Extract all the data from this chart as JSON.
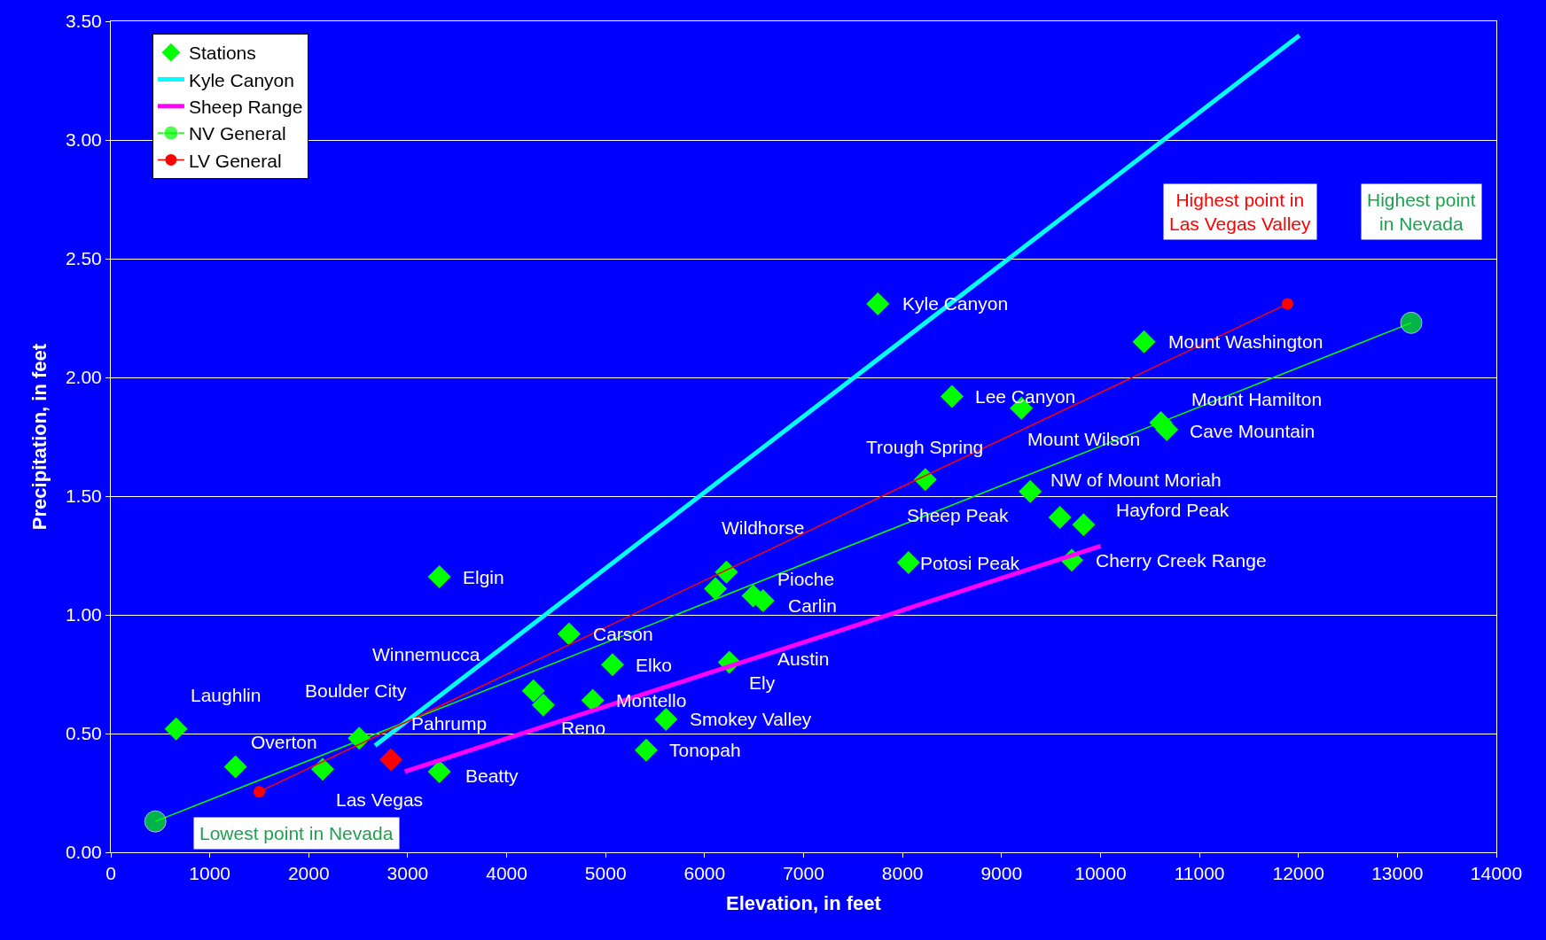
{
  "chart_data": {
    "type": "scatter",
    "xlabel": "Elevation, in feet",
    "ylabel": "Precipitation, in feet",
    "xlim": [
      0,
      14000
    ],
    "xticks": [
      0,
      1000,
      2000,
      3000,
      4000,
      5000,
      6000,
      7000,
      8000,
      9000,
      10000,
      11000,
      12000,
      13000,
      14000
    ],
    "ylim": [
      0,
      3.5
    ],
    "yticks": [
      {
        "value": 0,
        "label": "0.00"
      },
      {
        "value": 0.5,
        "label": "0.50"
      },
      {
        "value": 1,
        "label": "1.00"
      },
      {
        "value": 1.5,
        "label": "1.50"
      },
      {
        "value": 2,
        "label": "2.00"
      },
      {
        "value": 2.5,
        "label": "2.50"
      },
      {
        "value": 3,
        "label": "3.00"
      },
      {
        "value": 3.5,
        "label": "3.50"
      }
    ],
    "grid": "y",
    "legend": "top left",
    "series": [
      {
        "name": "Stations",
        "type": "scatter",
        "marker": "diamond",
        "color": "#00ff00",
        "x": [
          7750,
          10440,
          8500,
          9200,
          10610,
          10670,
          8230,
          9290,
          9590,
          9830,
          8060,
          9710,
          6220,
          6490,
          6590,
          6110,
          3320,
          4630,
          5070,
          6250,
          4270,
          4370,
          4870,
          5610,
          5410,
          3320,
          660,
          1260,
          2140,
          2510,
          2830
        ],
        "values": [
          2.31,
          2.15,
          1.92,
          1.87,
          1.81,
          1.78,
          1.57,
          1.52,
          1.41,
          1.38,
          1.22,
          1.23,
          1.18,
          1.08,
          1.06,
          1.11,
          1.16,
          0.92,
          0.79,
          0.8,
          0.68,
          0.62,
          0.64,
          0.56,
          0.43,
          0.34,
          0.52,
          0.36,
          0.35,
          0.48,
          0.39
        ],
        "colors": [
          "#00ff00",
          "#00ff00",
          "#00ff00",
          "#00ff00",
          "#00ff00",
          "#00ff00",
          "#00ff00",
          "#00ff00",
          "#00ff00",
          "#00ff00",
          "#00ff00",
          "#00ff00",
          "#00ff00",
          "#00ff00",
          "#00ff00",
          "#00ff00",
          "#00ff00",
          "#00ff00",
          "#00ff00",
          "#00ff00",
          "#00ff00",
          "#00ff00",
          "#00ff00",
          "#00ff00",
          "#00ff00",
          "#00ff00",
          "#00ff00",
          "#00ff00",
          "#00ff00",
          "#00ff00",
          "#ff0000"
        ]
      },
      {
        "name": "Kyle Canyon",
        "type": "line",
        "marker": "none",
        "color": "#00ffff",
        "x": [
          2670,
          12010
        ],
        "values": [
          0.45,
          3.44
        ]
      },
      {
        "name": "Sheep Range",
        "type": "line",
        "marker": "none",
        "color": "#ff00ff",
        "x": [
          2970,
          10000
        ],
        "values": [
          0.34,
          1.29
        ]
      },
      {
        "name": "NV General",
        "type": "line",
        "marker": "circle",
        "color": "#00ff00",
        "x": [
          450,
          13140
        ],
        "values": [
          0.13,
          2.23
        ]
      },
      {
        "name": "LV General",
        "type": "line",
        "marker": "circle",
        "color": "#ff0000",
        "x": [
          1500,
          11890
        ],
        "values": [
          0.255,
          2.31
        ]
      }
    ],
    "annotations": [
      "Highest point in\nLas Vegas Valley",
      "Highest point\nin Nevada",
      "Lowest point in Nevada",
      {
        "text": "Kyle Canyon",
        "x": 7750,
        "y": 2.31
      },
      {
        "text": "Mount Washington",
        "x": 10440,
        "y": 2.15
      },
      {
        "text": "Lee Canyon",
        "x": 8500,
        "y": 1.92
      },
      {
        "text": "Mount Wilson",
        "x": 9200,
        "y": 1.87
      },
      {
        "text": "Mount Hamilton",
        "x": 10610,
        "y": 1.81
      },
      {
        "text": "Cave Mountain",
        "x": 10670,
        "y": 1.78
      },
      {
        "text": "Trough Spring",
        "x": 8230,
        "y": 1.57
      },
      {
        "text": "NW of Mount Moriah",
        "x": 9290,
        "y": 1.52
      },
      {
        "text": "Sheep Peak",
        "x": 9590,
        "y": 1.41
      },
      {
        "text": "Hayford Peak",
        "x": 9830,
        "y": 1.38
      },
      {
        "text": "Potosi Peak",
        "x": 8060,
        "y": 1.22
      },
      {
        "text": "Cherry Creek Range",
        "x": 9710,
        "y": 1.23
      },
      {
        "text": "Wildhorse",
        "x": 6220,
        "y": 1.18
      },
      {
        "text": "Pioche",
        "x": 6490,
        "y": 1.08
      },
      {
        "text": "Carlin",
        "x": 6590,
        "y": 1.06
      },
      {
        "text": "Elgin",
        "x": 3320,
        "y": 1.16
      },
      {
        "text": "Carson",
        "x": 4630,
        "y": 0.92
      },
      {
        "text": "Elko",
        "x": 5070,
        "y": 0.79
      },
      {
        "text": "Austin",
        "x": 6250,
        "y": 0.8
      },
      {
        "text": "Ely",
        "x": 6250,
        "y": 0.8
      },
      "Winnemucca",
      {
        "text": "Reno",
        "x": 4370,
        "y": 0.62
      },
      {
        "text": "Montello",
        "x": 4870,
        "y": 0.64
      },
      {
        "text": "Smokey Valley",
        "x": 5610,
        "y": 0.56
      },
      {
        "text": "Tonopah",
        "x": 5410,
        "y": 0.43
      },
      {
        "text": "Beatty",
        "x": 3320,
        "y": 0.34
      },
      {
        "text": "Laughlin",
        "x": 660,
        "y": 0.52
      },
      {
        "text": "Overton",
        "x": 1260,
        "y": 0.36
      },
      {
        "text": "Las Vegas",
        "x": 2140,
        "y": 0.35
      },
      {
        "text": "Boulder City",
        "x": 2510,
        "y": 0.48
      },
      {
        "text": "Pahrump",
        "x": 2830,
        "y": 0.39
      }
    ]
  }
}
